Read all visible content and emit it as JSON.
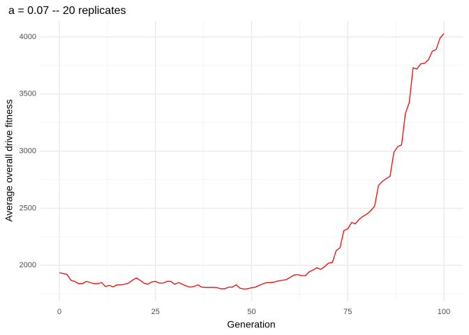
{
  "chart_data": {
    "type": "line",
    "title": "a = 0.07  -- 20 replicates",
    "x_label": "Generation",
    "y_label": "Average overall drive fitness",
    "xlim": [
      -5,
      105
    ],
    "ylim": [
      1690,
      4140
    ],
    "xticks": [
      0,
      25,
      50,
      75,
      100
    ],
    "yticks": [
      2000,
      2500,
      3000,
      3500,
      4000
    ],
    "grid": true,
    "x": [
      0,
      1,
      2,
      3,
      4,
      5,
      6,
      7,
      8,
      9,
      10,
      11,
      12,
      13,
      14,
      15,
      16,
      17,
      18,
      19,
      20,
      21,
      22,
      23,
      24,
      25,
      26,
      27,
      28,
      29,
      30,
      31,
      32,
      33,
      34,
      35,
      36,
      37,
      38,
      39,
      40,
      41,
      42,
      43,
      44,
      45,
      46,
      47,
      48,
      49,
      50,
      51,
      52,
      53,
      54,
      55,
      56,
      57,
      58,
      59,
      60,
      61,
      62,
      63,
      64,
      65,
      66,
      67,
      68,
      69,
      70,
      71,
      72,
      73,
      74,
      75,
      76,
      77,
      78,
      79,
      80,
      81,
      82,
      83,
      84,
      85,
      86,
      87,
      88,
      89,
      90,
      91,
      92,
      93,
      94,
      95,
      96,
      97,
      98,
      99,
      100
    ],
    "series": [
      {
        "name": "fitness",
        "color": "#ff0000",
        "values": [
          1935,
          1930,
          1920,
          1870,
          1860,
          1840,
          1840,
          1860,
          1850,
          1840,
          1840,
          1850,
          1815,
          1825,
          1812,
          1830,
          1830,
          1835,
          1845,
          1870,
          1890,
          1870,
          1845,
          1835,
          1855,
          1860,
          1845,
          1845,
          1860,
          1860,
          1835,
          1850,
          1835,
          1820,
          1810,
          1815,
          1830,
          1810,
          1808,
          1808,
          1808,
          1806,
          1795,
          1795,
          1810,
          1810,
          1830,
          1800,
          1793,
          1795,
          1805,
          1810,
          1825,
          1840,
          1850,
          1850,
          1855,
          1865,
          1870,
          1875,
          1895,
          1915,
          1920,
          1910,
          1910,
          1945,
          1960,
          1980,
          1965,
          1990,
          2020,
          2025,
          2130,
          2155,
          2305,
          2320,
          2375,
          2365,
          2405,
          2430,
          2450,
          2480,
          2520,
          2700,
          2735,
          2760,
          2780,
          2990,
          3040,
          3055,
          3330,
          3425,
          3730,
          3720,
          3765,
          3770,
          3800,
          3875,
          3890,
          3990,
          4030
        ]
      }
    ]
  }
}
